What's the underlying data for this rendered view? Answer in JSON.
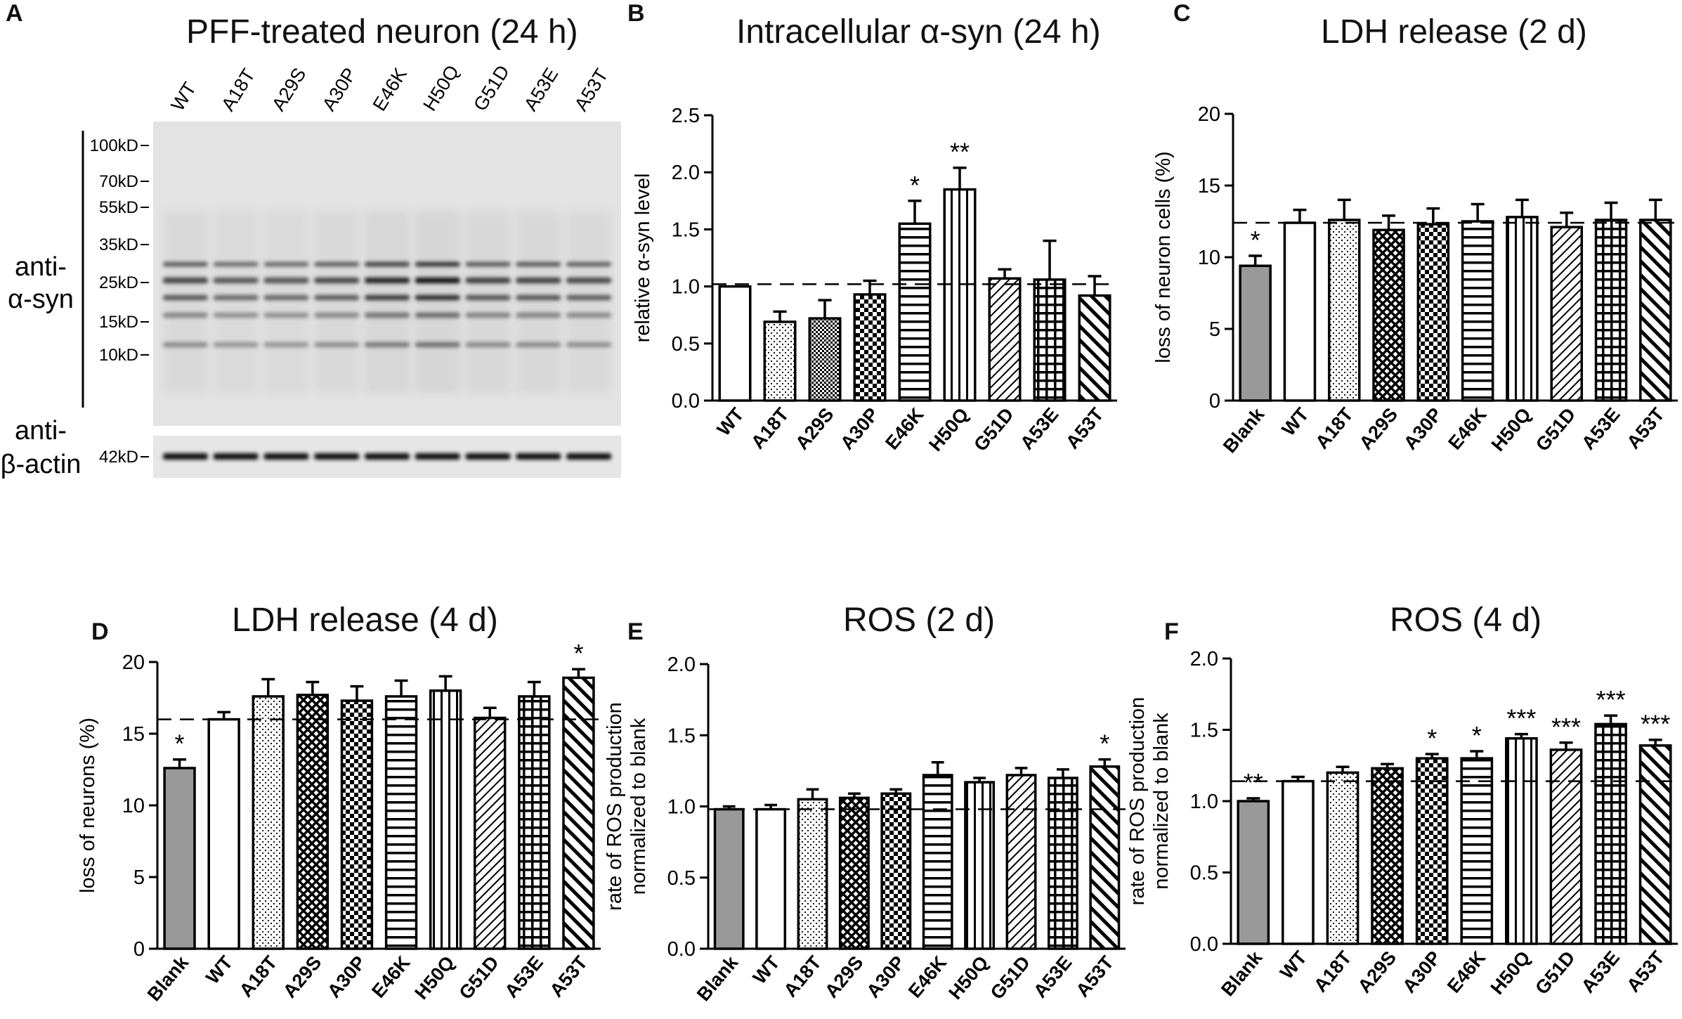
{
  "panel_letters": {
    "A": "A",
    "B": "B",
    "C": "C",
    "D": "D",
    "E": "E",
    "F": "F"
  },
  "blot": {
    "title": "PFF-treated neuron (24 h)",
    "lanes": [
      "WT",
      "A18T",
      "A29S",
      "A30P",
      "E46K",
      "H50Q",
      "G51D",
      "A53E",
      "A53T"
    ],
    "markers": [
      "100kD",
      "70kD",
      "55kD",
      "35kD",
      "25kD",
      "15kD",
      "10kD"
    ],
    "actin_marker": "42kD",
    "label_syn_line1": "anti-",
    "label_syn_line2": "α-syn",
    "label_actin_line1": "anti-",
    "label_actin_line2": "β-actin"
  },
  "colors": {
    "axis": "#000000",
    "blank_fill": "#999999",
    "bar_fill": "#ffffff"
  },
  "chart_data": [
    {
      "id": "B",
      "type": "bar",
      "title": "Intracellular α-syn (24 h)",
      "ylabel": [
        "relative α-syn  level"
      ],
      "categories": [
        "WT",
        "A18T",
        "A29S",
        "A30P",
        "E46K",
        "H50Q",
        "G51D",
        "A53E",
        "A53T"
      ],
      "patterns": [
        "none",
        "dots",
        "checker",
        "checker-large",
        "hstripes",
        "vstripes",
        "diag-right",
        "grid",
        "diag-left-thick"
      ],
      "values": [
        1.0,
        0.69,
        0.72,
        0.93,
        1.55,
        1.85,
        1.07,
        1.06,
        0.92
      ],
      "errors": [
        0,
        0.09,
        0.16,
        0.12,
        0.2,
        0.19,
        0.08,
        0.34,
        0.17
      ],
      "significance": [
        "",
        "",
        "",
        "",
        "*",
        "**",
        "",
        "",
        ""
      ],
      "ylim": [
        0,
        2.5
      ],
      "yticks": [
        "0.0",
        "0.5",
        "1.0",
        "1.5",
        "2.0",
        "2.5"
      ],
      "reference_line": 1.02
    },
    {
      "id": "C",
      "type": "bar",
      "title": "LDH release (2 d)",
      "ylabel": [
        "loss of neuron cells (%)"
      ],
      "categories": [
        "Blank",
        "WT",
        "A18T",
        "A29S",
        "A30P",
        "E46K",
        "H50Q",
        "G51D",
        "A53E",
        "A53T"
      ],
      "patterns": [
        "blank",
        "none",
        "dots",
        "crosshatch",
        "checker-large",
        "hstripes",
        "vstripes",
        "diag-right",
        "grid",
        "diag-left-thick"
      ],
      "values": [
        9.4,
        12.4,
        12.6,
        11.9,
        12.3,
        12.5,
        12.8,
        12.1,
        12.6,
        12.6
      ],
      "errors": [
        0.7,
        0.9,
        1.4,
        1.0,
        1.1,
        1.2,
        1.2,
        1.0,
        1.2,
        1.4
      ],
      "significance": [
        "*",
        "",
        "",
        "",
        "",
        "",
        "",
        "",
        "",
        ""
      ],
      "ylim": [
        0,
        20
      ],
      "yticks": [
        "0",
        "5",
        "10",
        "15",
        "20"
      ],
      "reference_line": 12.4
    },
    {
      "id": "D",
      "type": "bar",
      "title": "LDH release (4 d)",
      "ylabel": [
        "loss of neurons (%)"
      ],
      "categories": [
        "Blank",
        "WT",
        "A18T",
        "A29S",
        "A30P",
        "E46K",
        "H50Q",
        "G51D",
        "A53E",
        "A53T"
      ],
      "patterns": [
        "blank",
        "none",
        "dots",
        "crosshatch",
        "checker-large",
        "hstripes",
        "vstripes",
        "diag-right",
        "grid",
        "diag-left-thick"
      ],
      "values": [
        12.6,
        16.0,
        17.6,
        17.7,
        17.3,
        17.6,
        18.0,
        16.1,
        17.6,
        18.9
      ],
      "errors": [
        0.6,
        0.5,
        1.2,
        0.9,
        1.0,
        1.1,
        1.0,
        0.7,
        1.0,
        0.6
      ],
      "significance": [
        "*",
        "",
        "",
        "",
        "",
        "",
        "",
        "",
        "",
        "*"
      ],
      "ylim": [
        0,
        20
      ],
      "yticks": [
        "0",
        "5",
        "10",
        "15",
        "20"
      ],
      "reference_line": 16.0
    },
    {
      "id": "E",
      "type": "bar",
      "title": "ROS  (2 d)",
      "ylabel": [
        "rate of ROS production",
        "normalized to blank"
      ],
      "categories": [
        "Blank",
        "WT",
        "A18T",
        "A29S",
        "A30P",
        "E46K",
        "H50Q",
        "G51D",
        "A53E",
        "A53T"
      ],
      "patterns": [
        "blank",
        "none",
        "dots",
        "crosshatch",
        "checker-large",
        "hstripes",
        "vstripes",
        "diag-right",
        "grid",
        "diag-left-thick"
      ],
      "values": [
        0.98,
        0.98,
        1.05,
        1.06,
        1.09,
        1.22,
        1.17,
        1.22,
        1.2,
        1.28
      ],
      "errors": [
        0.02,
        0.03,
        0.07,
        0.03,
        0.03,
        0.09,
        0.03,
        0.05,
        0.06,
        0.05
      ],
      "significance": [
        "",
        "",
        "",
        "",
        "",
        "",
        "",
        "",
        "",
        "*"
      ],
      "ylim": [
        0,
        2.0
      ],
      "yticks": [
        "0.0",
        "0.5",
        "1.0",
        "1.5",
        "2.0"
      ],
      "reference_line": 0.98
    },
    {
      "id": "F",
      "type": "bar",
      "title": "ROS  (4 d)",
      "ylabel": [
        "rate of ROS production",
        "normalized to blank"
      ],
      "categories": [
        "Blank",
        "WT",
        "A18T",
        "A29S",
        "A30P",
        "E46K",
        "H50Q",
        "G51D",
        "A53E",
        "A53T"
      ],
      "patterns": [
        "blank",
        "none",
        "dots",
        "crosshatch",
        "checker-large",
        "hstripes",
        "vstripes",
        "diag-right",
        "grid",
        "diag-left-thick"
      ],
      "values": [
        1.0,
        1.14,
        1.2,
        1.23,
        1.3,
        1.3,
        1.44,
        1.36,
        1.54,
        1.39
      ],
      "errors": [
        0.02,
        0.03,
        0.04,
        0.03,
        0.03,
        0.05,
        0.03,
        0.05,
        0.06,
        0.04
      ],
      "significance": [
        "**",
        "",
        "",
        "",
        "*",
        "*",
        "***",
        "***",
        "***",
        "***"
      ],
      "ylim": [
        0,
        2.0
      ],
      "yticks": [
        "0.0",
        "0.5",
        "1.0",
        "1.5",
        "2.0"
      ],
      "reference_line": 1.14
    }
  ]
}
